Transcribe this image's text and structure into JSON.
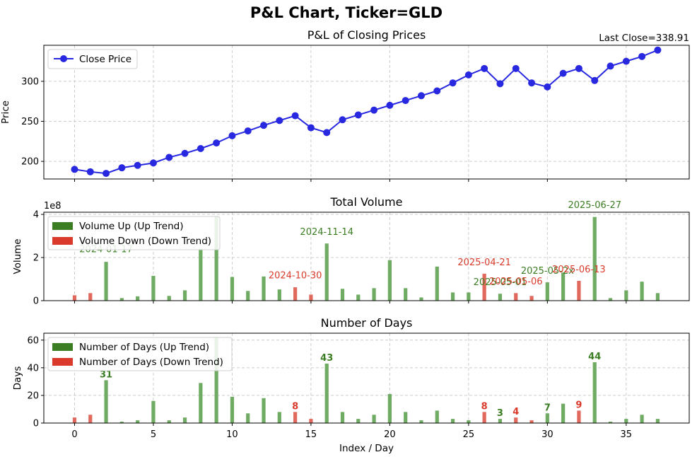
{
  "suptitle": "P&L Chart, Ticker=GLD",
  "colors": {
    "line": "#2828e0",
    "up": "#3b7d23",
    "up_bar": "#6fab63",
    "down": "#d93a2b",
    "down_bar": "#e0685c",
    "grid": "#cccccc"
  },
  "chart_data": [
    {
      "type": "line",
      "title": "P&L of Closing Prices",
      "corner_note": "Last Close=338.91",
      "ylabel": "Price",
      "ylim": [
        178,
        345
      ],
      "yticks": [
        200,
        250,
        300
      ],
      "legend": [
        "Close Price"
      ],
      "x": [
        0,
        1,
        2,
        3,
        4,
        5,
        6,
        7,
        8,
        9,
        10,
        11,
        12,
        13,
        14,
        15,
        16,
        17,
        18,
        19,
        20,
        21,
        22,
        23,
        24,
        25,
        26,
        27,
        28,
        29,
        30,
        31,
        32,
        33,
        34,
        35,
        36,
        37
      ],
      "values": [
        190,
        187,
        185,
        192,
        195,
        198,
        205,
        210,
        216,
        223,
        232,
        238,
        245,
        251,
        257,
        242,
        236,
        252,
        258,
        264,
        270,
        276,
        282,
        288,
        298,
        308,
        316,
        297,
        316,
        298,
        293,
        310,
        316,
        301,
        319,
        325,
        331,
        339
      ]
    },
    {
      "type": "bar",
      "title": "Total Volume",
      "ylabel": "Volume",
      "offset_label": "1e8",
      "ylim": [
        0,
        4.1
      ],
      "yticks": [
        0,
        2,
        4
      ],
      "legend": [
        "Volume Up (Up Trend)",
        "Volume Down (Down Trend)"
      ],
      "up": {
        "x": [
          2,
          3,
          4,
          5,
          6,
          7,
          8,
          9,
          10,
          11,
          12,
          13,
          16,
          17,
          18,
          19,
          20,
          21,
          22,
          23,
          24,
          25,
          27,
          30,
          31,
          33,
          34,
          35,
          36,
          37
        ],
        "values": [
          1.8,
          0.12,
          0.2,
          1.15,
          0.22,
          0.48,
          2.4,
          3.9,
          1.1,
          0.45,
          1.12,
          0.52,
          2.65,
          0.55,
          0.28,
          0.58,
          1.88,
          0.58,
          0.15,
          1.58,
          0.38,
          0.38,
          0.32,
          0.85,
          1.3,
          3.88,
          0.12,
          0.48,
          0.88,
          0.35
        ]
      },
      "down": {
        "x": [
          0,
          1,
          14,
          15,
          26,
          28,
          29,
          32
        ],
        "values": [
          0.25,
          0.35,
          0.62,
          0.28,
          1.25,
          0.35,
          0.22,
          0.92
        ]
      },
      "annotations": [
        {
          "x": 2,
          "y": 2.05,
          "text": "2024-01-17",
          "trend": "up"
        },
        {
          "x": 14,
          "y": 0.83,
          "text": "2024-10-30",
          "trend": "down"
        },
        {
          "x": 16,
          "y": 2.85,
          "text": "2024-11-14",
          "trend": "up"
        },
        {
          "x": 26,
          "y": 1.45,
          "text": "2025-04-21",
          "trend": "down"
        },
        {
          "x": 27,
          "y": 0.52,
          "text": "2025-05-01",
          "trend": "up"
        },
        {
          "x": 28,
          "y": 0.55,
          "text": "2025-05-06",
          "trend": "down"
        },
        {
          "x": 30,
          "y": 1.05,
          "text": "2025-05-2x",
          "trend": "up"
        },
        {
          "x": 32,
          "y": 1.12,
          "text": "2025-06-13",
          "trend": "down"
        },
        {
          "x": 33,
          "y": 4.1,
          "text": "2025-06-27",
          "trend": "up"
        }
      ]
    },
    {
      "type": "bar",
      "title": "Number of Days",
      "ylabel": "Days",
      "xlabel": "Index / Day",
      "ylim": [
        0,
        65
      ],
      "yticks": [
        0,
        20,
        40,
        60
      ],
      "xticks": [
        0,
        5,
        10,
        15,
        20,
        25,
        30,
        35
      ],
      "legend": [
        "Number of Days (Up Trend)",
        "Number of Days (Down Trend)"
      ],
      "up": {
        "x": [
          2,
          3,
          4,
          5,
          6,
          7,
          8,
          9,
          10,
          11,
          12,
          13,
          16,
          17,
          18,
          19,
          20,
          21,
          22,
          23,
          24,
          25,
          27,
          30,
          31,
          33,
          34,
          35,
          36,
          37
        ],
        "values": [
          31,
          1,
          2,
          16,
          2,
          4,
          29,
          62,
          19,
          7,
          18,
          8,
          43,
          8,
          3,
          6,
          21,
          8,
          2,
          9,
          3,
          2,
          3,
          7,
          14,
          44,
          1,
          3,
          6,
          3
        ]
      },
      "down": {
        "x": [
          0,
          1,
          14,
          15,
          26,
          28,
          29,
          32
        ],
        "values": [
          4,
          6,
          8,
          3,
          8,
          4,
          2,
          9
        ]
      },
      "annotations": [
        {
          "x": 2,
          "y": 31,
          "text": "31",
          "trend": "up"
        },
        {
          "x": 14,
          "y": 8,
          "text": "8",
          "trend": "down"
        },
        {
          "x": 16,
          "y": 43,
          "text": "43",
          "trend": "up"
        },
        {
          "x": 26,
          "y": 8,
          "text": "8",
          "trend": "down"
        },
        {
          "x": 27,
          "y": 3,
          "text": "3",
          "trend": "up"
        },
        {
          "x": 28,
          "y": 4,
          "text": "4",
          "trend": "down"
        },
        {
          "x": 30,
          "y": 7,
          "text": "7",
          "trend": "up"
        },
        {
          "x": 32,
          "y": 9,
          "text": "9",
          "trend": "down"
        },
        {
          "x": 33,
          "y": 44,
          "text": "44",
          "trend": "up"
        }
      ]
    }
  ]
}
